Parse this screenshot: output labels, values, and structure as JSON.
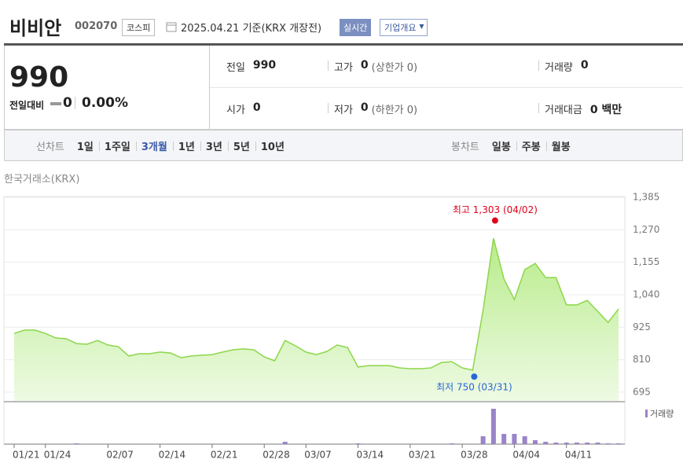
{
  "header": {
    "name": "비비안",
    "code": "002070",
    "market": "코스피",
    "date": "2025.04.21 기준(KRX 개장전)",
    "realtime": "실시간",
    "company": "기업개요"
  },
  "quote": {
    "price": "990",
    "change_label": "전일대비",
    "change": "0",
    "change_pct": "0.00%",
    "fields": [
      {
        "label": "전일",
        "value": "990"
      },
      {
        "label": "고가",
        "value": "0",
        "extra": "(상한가 0)"
      },
      {
        "label": "거래량",
        "value": "0"
      },
      {
        "label": "시가",
        "value": "0"
      },
      {
        "label": "저가",
        "value": "0",
        "extra": "(하한가 0)"
      },
      {
        "label": "거래대금",
        "value": "0 백만"
      }
    ]
  },
  "tabs": {
    "line_label": "선차트",
    "line": [
      "1일",
      "1주일",
      "3개월",
      "1년",
      "3년",
      "5년",
      "10년"
    ],
    "selected": "3개월",
    "candle_label": "봉차트",
    "candle": [
      "일봉",
      "주봉",
      "월봉"
    ]
  },
  "chart_data": {
    "type": "line",
    "source": "한국거래소(KRX)",
    "categories": [
      "01/21",
      null,
      null,
      "01/24",
      null,
      null,
      null,
      null,
      null,
      "02/07",
      null,
      null,
      null,
      null,
      "02/14",
      null,
      null,
      null,
      null,
      "02/21",
      null,
      null,
      null,
      null,
      "02/28",
      null,
      null,
      null,
      "03/07",
      null,
      null,
      null,
      null,
      "03/14",
      null,
      null,
      null,
      null,
      "03/21",
      null,
      null,
      null,
      null,
      "03/28",
      null,
      null,
      null,
      null,
      "04/04",
      null,
      null,
      null,
      null,
      "04/11",
      null,
      null,
      null,
      null,
      null
    ],
    "series": [
      {
        "color": "#8cd64a",
        "values": [
          903,
          915,
          915,
          903,
          887,
          884,
          867,
          865,
          878,
          862,
          856,
          823,
          831,
          831,
          837,
          834,
          817,
          823,
          826,
          828,
          837,
          845,
          848,
          845,
          820,
          806,
          878,
          859,
          837,
          828,
          839,
          862,
          853,
          784,
          789,
          789,
          789,
          781,
          778,
          778,
          781,
          800,
          803,
          781,
          773,
          985,
          1240,
          1096,
          1023,
          1129,
          1151,
          1101,
          1101,
          1004,
          1004,
          1020,
          981,
          942,
          990
        ]
      }
    ],
    "ylim": [
      664,
      1388
    ],
    "yticks": [
      {
        "value": 695,
        "label": "695"
      },
      {
        "value": 810,
        "label": "810"
      },
      {
        "value": 925,
        "label": "925"
      },
      {
        "value": 1040,
        "label": "1,040"
      },
      {
        "value": 1155,
        "label": "1,155"
      },
      {
        "value": 1270,
        "label": "1,270"
      },
      {
        "value": 1385,
        "label": "1,385"
      }
    ],
    "grid": true,
    "annotations": [
      {
        "label": "최고 1,303 (04/02)",
        "value": 1303,
        "index": 46,
        "color": "#e0001b",
        "position": "above"
      },
      {
        "label": "최저  750 (03/31)",
        "value": 750,
        "index": 44,
        "color": "#2a66d8",
        "position": "below"
      }
    ],
    "volume": {
      "name": "거래량",
      "color": "#9a84c8",
      "ylim": [
        0,
        50
      ],
      "values": [
        0,
        0,
        0,
        0,
        0,
        0,
        1,
        0,
        0,
        0,
        0,
        0,
        0,
        0,
        0,
        0,
        0,
        0,
        0,
        0,
        0,
        0,
        0,
        0,
        0,
        0,
        3,
        0,
        0,
        0,
        0,
        0,
        0,
        1,
        0,
        0,
        0,
        0,
        0,
        0,
        0,
        0,
        1,
        0,
        0,
        10,
        45,
        13,
        13,
        10,
        5,
        3,
        2,
        2,
        2,
        2,
        2,
        1,
        1
      ]
    }
  }
}
